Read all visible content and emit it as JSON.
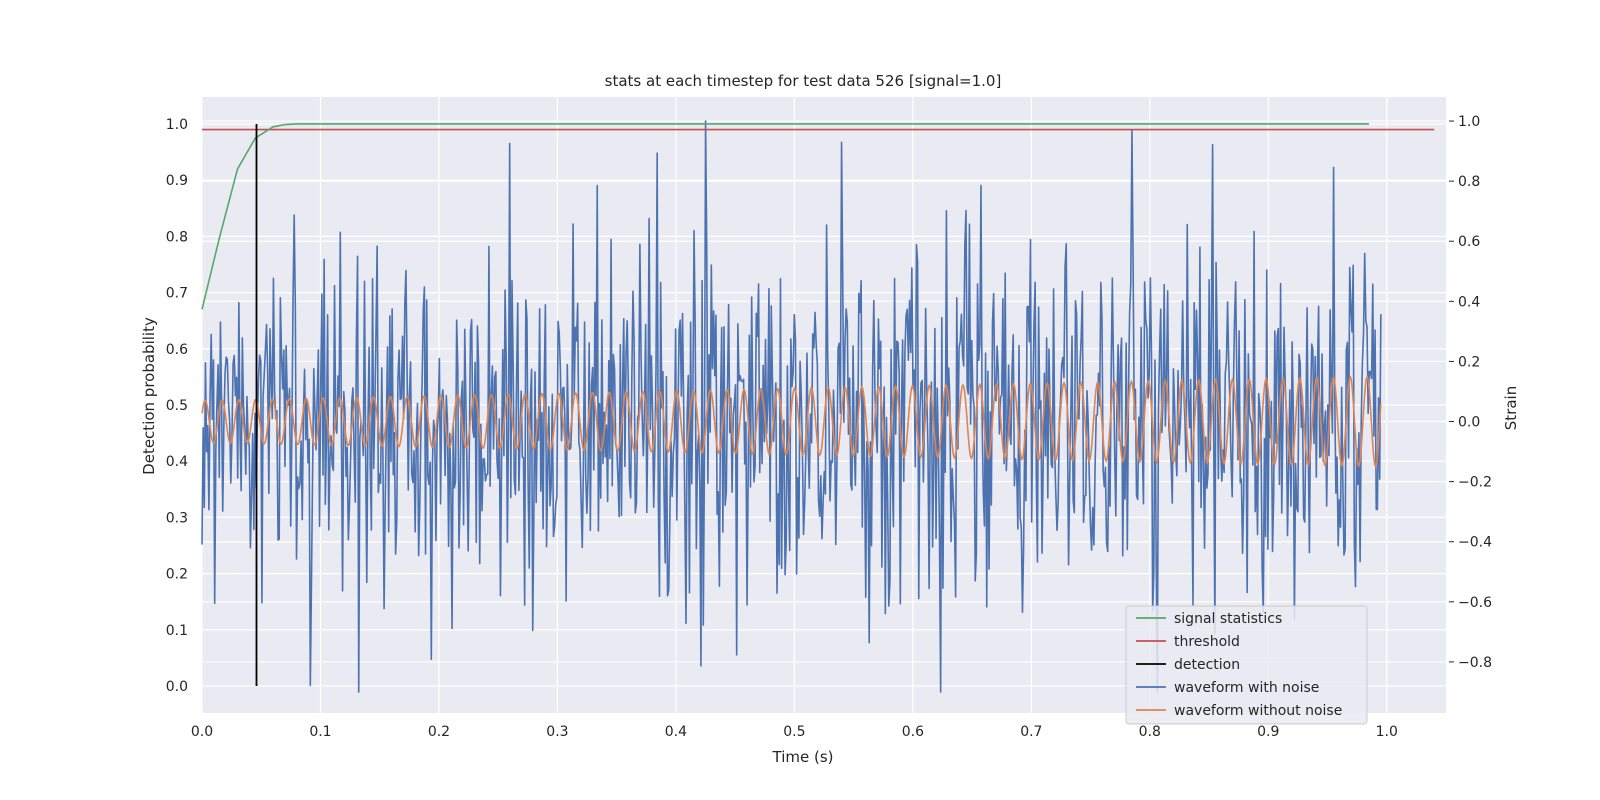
{
  "chart_data": {
    "type": "line",
    "title": "stats at each timestep for test data 526 [signal=1.0]",
    "xlabel": "Time (s)",
    "ylabel": "Detection probability",
    "ylabel_right": "Strain",
    "xlim": [
      0.0,
      1.05
    ],
    "ylim": [
      -0.048,
      1.048
    ],
    "ylim_right": [
      -0.97,
      1.08
    ],
    "x_ticks": [
      "0.0",
      "0.1",
      "0.2",
      "0.3",
      "0.4",
      "0.5",
      "0.6",
      "0.7",
      "0.8",
      "0.9",
      "1.0"
    ],
    "y_ticks": [
      "0.0",
      "0.1",
      "0.2",
      "0.3",
      "0.4",
      "0.5",
      "0.6",
      "0.7",
      "0.8",
      "0.9",
      "1.0"
    ],
    "y_ticks_right": [
      "−0.8",
      "−0.6",
      "−0.4",
      "−0.2",
      "0.0",
      "0.2",
      "0.4",
      "0.6",
      "0.8",
      "1.0"
    ],
    "grid": true,
    "legend_position": "lower-right",
    "colors": {
      "signal_statistics": "#55a868",
      "threshold": "#c44e52",
      "detection": "#000000",
      "waveform_with_noise": "#4c72b0",
      "waveform_without_noise": "#dd8452",
      "background": "#eaeaf2",
      "grid": "#ffffff"
    },
    "legend": [
      "signal statistics",
      "threshold",
      "detection",
      "waveform with noise",
      "waveform without noise"
    ],
    "signal_statistics": {
      "x": [
        0.0,
        0.015,
        0.03,
        0.045,
        0.06,
        0.07,
        0.08,
        0.1,
        0.985
      ],
      "y": [
        0.67,
        0.8,
        0.92,
        0.975,
        0.995,
        0.999,
        1.0,
        1.0,
        1.0
      ]
    },
    "threshold": {
      "y": 0.99,
      "x": [
        0.0,
        1.04
      ]
    },
    "detection": {
      "x": 0.046,
      "y": [
        0.0,
        1.0
      ]
    },
    "waveform_without_noise": {
      "x_range": [
        0.0,
        0.995
      ],
      "cycles": 70,
      "amplitude_start": 0.07,
      "amplitude_end": 0.15,
      "units": "strain"
    },
    "waveform_with_noise": {
      "x_range": [
        0.0,
        0.995
      ],
      "samples": 1024,
      "std": 0.28,
      "min": -0.9,
      "max": 1.0,
      "units": "strain"
    }
  }
}
